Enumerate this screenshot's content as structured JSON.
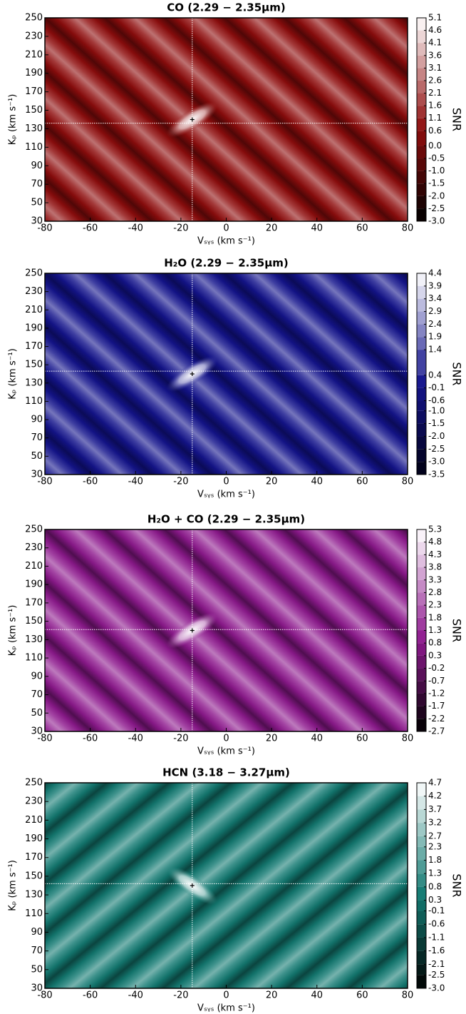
{
  "chart_data": [
    {
      "type": "contour",
      "title": "CO (2.29 − 2.35μm)",
      "x_label": "Vₛᵧₛ (km s⁻¹)",
      "y_label": "Kₚ (km s⁻¹)",
      "colorbar_label": "SNR",
      "xlim": [
        -80,
        80
      ],
      "xticks": [
        -80,
        -60,
        -40,
        -20,
        0,
        20,
        40,
        60,
        80
      ],
      "ylim": [
        30,
        250
      ],
      "yticks": [
        30,
        50,
        70,
        90,
        110,
        130,
        150,
        170,
        190,
        210,
        230,
        250
      ],
      "clim": [
        -3,
        5.1
      ],
      "cticks": [
        5.1,
        4.6,
        4.1,
        3.6,
        3.1,
        2.6,
        2.1,
        1.6,
        1.1,
        0.6,
        {
          "value": 0,
          "label": "0.0"
        },
        -0.5,
        {
          "value": -1,
          "label": "-1.0"
        },
        -1.5,
        {
          "value": -2,
          "label": "-2.0"
        },
        -2.5,
        {
          "value": -3,
          "label": "-3.0"
        }
      ],
      "colormap": [
        "#000000",
        "#8e0d0d",
        "#ffffff"
      ],
      "crosshair": {
        "x": -15,
        "y": 136
      },
      "marker": {
        "x": -15,
        "y": 140
      }
    },
    {
      "type": "contour",
      "title": "H₂O (2.29 − 2.35μm)",
      "x_label": "Vₛᵧₛ (km s⁻¹)",
      "y_label": "Kₚ (km s⁻¹)",
      "colorbar_label": "SNR",
      "xlim": [
        -80,
        80
      ],
      "xticks": [
        -80,
        -60,
        -40,
        -20,
        0,
        20,
        40,
        60,
        80
      ],
      "ylim": [
        30,
        250
      ],
      "yticks": [
        30,
        50,
        70,
        90,
        110,
        130,
        150,
        170,
        190,
        210,
        230,
        250
      ],
      "clim": [
        -3.5,
        4.4
      ],
      "cticks": [
        4.4,
        3.9,
        3.4,
        2.9,
        2.4,
        1.9,
        1.4,
        0.4,
        -0.1,
        -0.6,
        {
          "value": -1,
          "label": "-1.0"
        },
        -1.5,
        {
          "value": -2,
          "label": "-2.0"
        },
        -2.5,
        {
          "value": -3,
          "label": "-3.0"
        },
        -3.5
      ],
      "colormap": [
        "#000014",
        "#14148c",
        "#ffffff"
      ],
      "crosshair": {
        "x": -15,
        "y": 143
      },
      "marker": {
        "x": -15,
        "y": 140
      }
    },
    {
      "type": "contour",
      "title": "H₂O + CO (2.29 − 2.35μm)",
      "x_label": "Vₛᵧₛ (km s⁻¹)",
      "y_label": "Kₚ (km s⁻¹)",
      "colorbar_label": "SNR",
      "xlim": [
        -80,
        80
      ],
      "xticks": [
        -80,
        -60,
        -40,
        -20,
        0,
        20,
        40,
        60,
        80
      ],
      "ylim": [
        30,
        250
      ],
      "yticks": [
        30,
        50,
        70,
        90,
        110,
        130,
        150,
        170,
        190,
        210,
        230,
        250
      ],
      "clim": [
        -2.7,
        5.3
      ],
      "cticks": [
        5.3,
        4.8,
        4.3,
        3.8,
        3.3,
        2.8,
        2.3,
        1.8,
        1.3,
        0.8,
        0.3,
        -0.2,
        -0.7,
        -1.2,
        -1.7,
        -2.2,
        -2.7
      ],
      "colormap": [
        "#000000",
        "#8e1a8e",
        "#ffffff"
      ],
      "crosshair": {
        "x": -15,
        "y": 141
      },
      "marker": {
        "x": -15,
        "y": 140
      }
    },
    {
      "type": "contour",
      "title": "HCN (3.18 − 3.27μm)",
      "x_label": "Vₛᵧₛ (km s⁻¹)",
      "y_label": "Kₚ (km s⁻¹)",
      "colorbar_label": "SNR",
      "xlim": [
        -80,
        80
      ],
      "xticks": [
        -80,
        -60,
        -40,
        -20,
        0,
        20,
        40,
        60,
        80
      ],
      "ylim": [
        30,
        250
      ],
      "yticks": [
        30,
        50,
        70,
        90,
        110,
        130,
        150,
        170,
        190,
        210,
        230,
        250
      ],
      "clim": [
        -3,
        4.7
      ],
      "cticks": [
        4.7,
        4.2,
        3.7,
        3.2,
        2.7,
        2.3,
        1.8,
        1.3,
        0.8,
        0.3,
        -0.1,
        -0.6,
        -1.1,
        -1.6,
        -2.1,
        -2.5,
        {
          "value": -3,
          "label": "-3.0"
        }
      ],
      "colormap": [
        "#000000",
        "#137a72",
        "#ffffff"
      ],
      "crosshair": {
        "x": -15,
        "y": 142
      },
      "marker": {
        "x": -15,
        "y": 140
      }
    }
  ]
}
